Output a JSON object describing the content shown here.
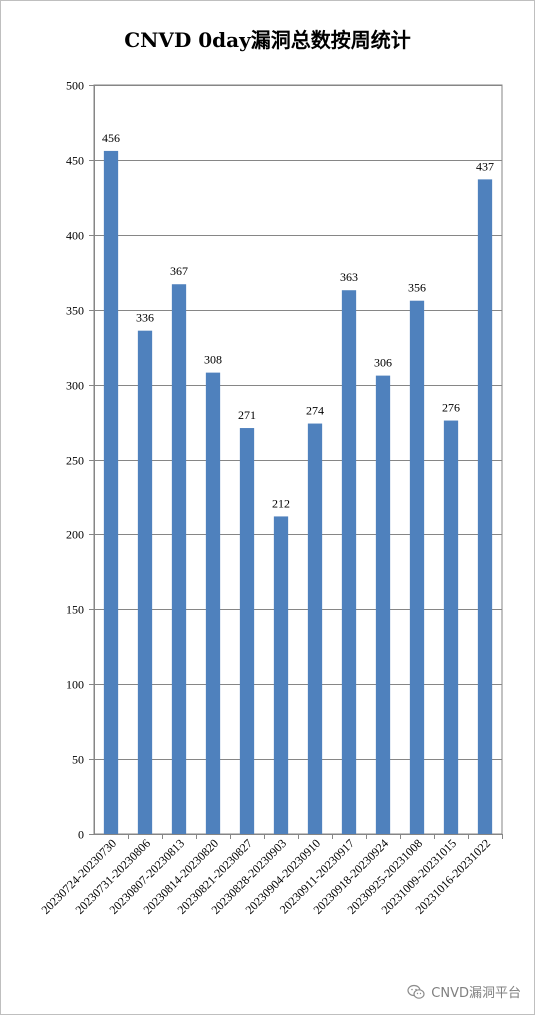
{
  "chart_data": {
    "type": "bar",
    "title": "CNVD 0day漏洞总数按周统计",
    "categories": [
      "20230724-20230730",
      "20230731-20230806",
      "20230807-20230813",
      "20230814-20230820",
      "20230821-20230827",
      "20230828-20230903",
      "20230904-20230910",
      "20230911-20230917",
      "20230918-20230924",
      "20230925-20231008",
      "20231009-20231015",
      "20231016-20231022"
    ],
    "values": [
      456,
      336,
      367,
      308,
      271,
      212,
      274,
      363,
      306,
      356,
      276,
      437
    ],
    "ylim": [
      0,
      500
    ],
    "yticks": [
      0,
      50,
      100,
      150,
      200,
      250,
      300,
      350,
      400,
      450,
      500
    ],
    "grid": true,
    "legend": "none",
    "bar_color": "#4f81bd"
  },
  "watermark": {
    "icon": "wechat-icon",
    "text": "CNVD漏洞平台"
  }
}
